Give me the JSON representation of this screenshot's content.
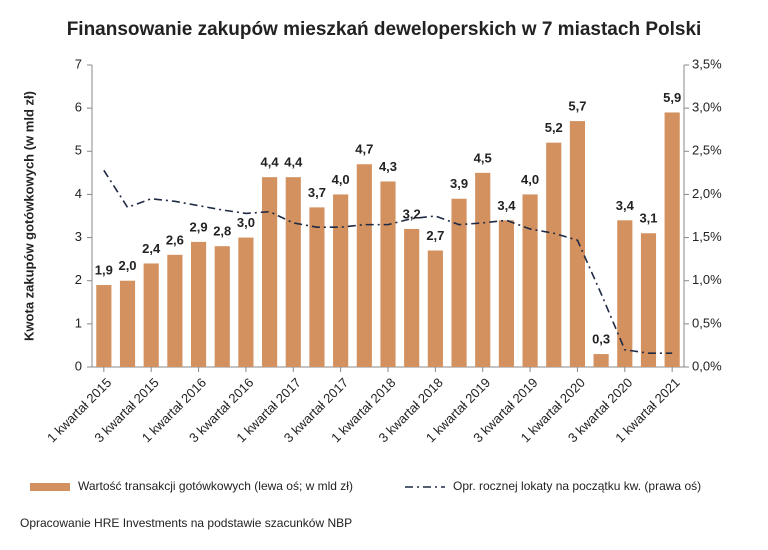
{
  "chart_data": {
    "type": "bar-line",
    "title": "Finansowanie zakupów mieszkań deweloperskich w 7 miastach Polski",
    "y_label": "Kwota zakupów gotówkowych (w mld zł)",
    "source": "Opracowanie HRE Investments na podstawie szacunków NBP",
    "categories": [
      "1 kwartał 2015",
      null,
      "3 kwartał 2015",
      null,
      "1 kwartał 2016",
      null,
      "3 kwartał 2016",
      null,
      "1 kwartał 2017",
      null,
      "3 kwartał 2017",
      null,
      "1 kwartał 2018",
      null,
      "3 kwartał 2018",
      null,
      "1 kwartał 2019",
      null,
      "3 kwartał 2019",
      null,
      "1 kwartał 2020",
      null,
      "3 kwartał 2020",
      null,
      "1 kwartał 2021"
    ],
    "series": [
      {
        "name": "Wartość transakcji gotówkowych (lewa oś; w mld zł)",
        "type": "bar",
        "axis": "y",
        "color": "#d3915f",
        "values": [
          1.9,
          2.0,
          2.4,
          2.6,
          2.9,
          2.8,
          3.0,
          4.4,
          4.4,
          3.7,
          4.0,
          4.7,
          4.3,
          3.2,
          2.7,
          3.9,
          4.5,
          3.4,
          4.0,
          5.2,
          5.7,
          0.3,
          3.4,
          3.1,
          5.9
        ],
        "value_labels": [
          "1,9",
          "2,0",
          "2,4",
          "2,6",
          "2,9",
          "2,8",
          "3,0",
          "4,4",
          "4,4",
          "3,7",
          "4,0",
          "4,7",
          "4,3",
          "3,2",
          "2,7",
          "3,9",
          "4,5",
          "3,4",
          "4,0",
          "5,2",
          "5,7",
          "0,3",
          "3,4",
          "3,1",
          "5,9"
        ]
      },
      {
        "name": "Opr. rocznej lokaty na początku kw. (prawa oś)",
        "type": "line",
        "axis": "y2",
        "color": "#1f2a44",
        "values": [
          2.28,
          1.85,
          1.95,
          1.92,
          1.87,
          1.82,
          1.78,
          1.8,
          1.67,
          1.62,
          1.62,
          1.65,
          1.65,
          1.72,
          1.75,
          1.65,
          1.67,
          1.7,
          1.6,
          1.55,
          1.47,
          0.85,
          0.2,
          0.16,
          0.16
        ]
      }
    ],
    "ylim": [
      0,
      7
    ],
    "yticks": [
      0,
      1,
      2,
      3,
      4,
      5,
      6,
      7
    ],
    "y2lim": [
      0,
      3.5
    ],
    "y2ticks": [
      {
        "value": 0,
        "label": "0,0%"
      },
      {
        "value": 0.5,
        "label": "0,5%"
      },
      {
        "value": 1,
        "label": "1,0%"
      },
      {
        "value": 1.5,
        "label": "1,5%"
      },
      {
        "value": 2,
        "label": "2,0%"
      },
      {
        "value": 2.5,
        "label": "2,5%"
      },
      {
        "value": 3,
        "label": "3,0%"
      },
      {
        "value": 3.5,
        "label": "3,5%"
      }
    ]
  }
}
